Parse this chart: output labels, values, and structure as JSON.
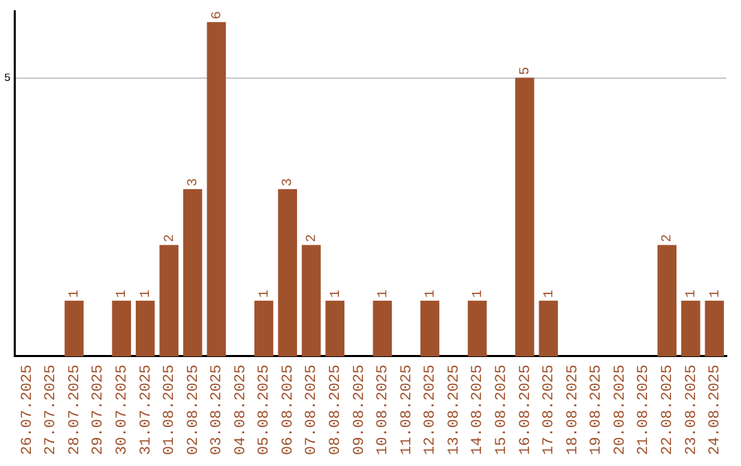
{
  "chart_data": {
    "type": "bar",
    "categories": [
      "26.07.2025",
      "27.07.2025",
      "28.07.2025",
      "29.07.2025",
      "30.07.2025",
      "31.07.2025",
      "01.08.2025",
      "02.08.2025",
      "03.08.2025",
      "04.08.2025",
      "05.08.2025",
      "06.08.2025",
      "07.08.2025",
      "08.08.2025",
      "09.08.2025",
      "10.08.2025",
      "11.08.2025",
      "12.08.2025",
      "13.08.2025",
      "14.08.2025",
      "15.08.2025",
      "16.08.2025",
      "17.08.2025",
      "18.08.2025",
      "19.08.2025",
      "20.08.2025",
      "21.08.2025",
      "22.08.2025",
      "23.08.2025",
      "24.08.2025"
    ],
    "values": [
      null,
      null,
      1,
      null,
      1,
      1,
      2,
      3,
      6,
      null,
      1,
      3,
      2,
      1,
      null,
      1,
      null,
      1,
      null,
      1,
      null,
      5,
      1,
      null,
      null,
      null,
      null,
      2,
      1,
      1
    ],
    "color": "#a0522d",
    "ylim": [
      0,
      6.2
    ],
    "yticks": [
      5
    ],
    "grid": "y",
    "data_labels": true,
    "legend": false
  }
}
